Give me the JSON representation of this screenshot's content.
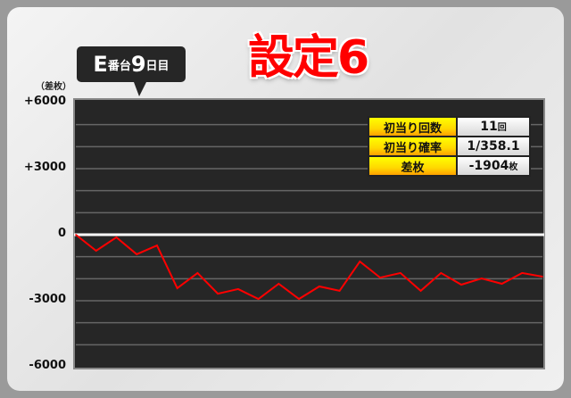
{
  "header": {
    "machine": "E",
    "machine_suffix": "番台",
    "day": "9",
    "day_suffix": "日目",
    "setting_title": "設定6"
  },
  "stats": [
    {
      "label": "初当り回数",
      "value": "11",
      "unit": "回"
    },
    {
      "label": "初当り確率",
      "value": "1/358.1",
      "unit": ""
    },
    {
      "label": "差枚",
      "value": "-1904",
      "unit": "枚"
    }
  ],
  "colors": {
    "line": "#ff0000",
    "plot_bg": "#262626",
    "zero_line": "#ffffff",
    "label_bg": "#ffe000"
  },
  "chart_data": {
    "type": "line",
    "ylabel": "（差枚）",
    "ylim": [
      -6000,
      6000
    ],
    "yticks": [
      6000,
      3000,
      0,
      -3000,
      -6000
    ],
    "ytick_labels": [
      "+6000",
      "+3000",
      "0",
      "-3000",
      "-6000"
    ],
    "grid": true,
    "values": [
      0,
      -730,
      -120,
      -890,
      -490,
      -2430,
      -1740,
      -2680,
      -2470,
      -2920,
      -2230,
      -2920,
      -2350,
      -2550,
      -1220,
      -1950,
      -1740,
      -2550,
      -1740,
      -2270,
      -1990,
      -2230,
      -1740,
      -1904
    ]
  }
}
